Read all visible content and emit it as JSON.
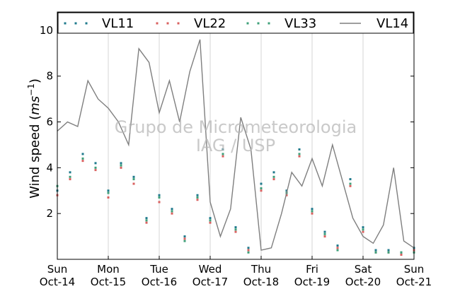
{
  "chart_data": {
    "type": "line",
    "ylabel": "Wind speed (m s⁻¹)",
    "ylabel_main": "Wind speed (",
    "ylabel_unit": "ms",
    "ylabel_exp": "−1",
    "ylabel_close": ")",
    "ylim": [
      0,
      10.8
    ],
    "yticks": [
      2,
      4,
      6,
      8,
      10
    ],
    "xlim": [
      "2012-10-14",
      "2012-10-21"
    ],
    "xticks": [
      {
        "day": "Sun",
        "date": "Oct-14"
      },
      {
        "day": "Mon",
        "date": "Oct-15"
      },
      {
        "day": "Tue",
        "date": "Oct-16"
      },
      {
        "day": "Wed",
        "date": "Oct-17"
      },
      {
        "day": "Thu",
        "date": "Oct-18"
      },
      {
        "day": "Fri",
        "date": "Oct-19"
      },
      {
        "day": "Sat",
        "date": "Oct-20"
      },
      {
        "day": "Sun",
        "date": "Oct-21"
      }
    ],
    "grid": "vertical",
    "legend_position": "top",
    "watermark": [
      "Grupo de Micrometeorologia",
      "IAG / USP"
    ],
    "series": [
      {
        "name": "VL11",
        "style": "dots",
        "color": "#1f7a8c",
        "x": [
          0,
          0.25,
          0.5,
          0.75,
          1,
          1.25,
          1.5,
          1.75,
          2,
          2.25,
          2.5,
          2.75,
          3,
          3.25,
          3.5,
          3.75,
          4,
          4.25,
          4.5,
          4.75,
          5,
          5.25,
          5.5,
          5.75,
          6,
          6.25,
          6.5,
          6.75,
          7
        ],
        "y": [
          3.0,
          3.8,
          4.6,
          4.2,
          3.0,
          4.2,
          3.6,
          1.8,
          2.8,
          2.2,
          1.0,
          2.8,
          1.8,
          4.8,
          1.4,
          0.5,
          3.3,
          3.8,
          3.0,
          4.8,
          2.2,
          1.2,
          0.6,
          3.5,
          1.4,
          0.4,
          0.4,
          0.3,
          0.5
        ]
      },
      {
        "name": "VL22",
        "style": "dots",
        "color": "#d9605f",
        "x": [
          0,
          0.25,
          0.5,
          0.75,
          1,
          1.25,
          1.5,
          1.75,
          2,
          2.25,
          2.5,
          2.75,
          3,
          3.25,
          3.5,
          3.75,
          4,
          4.25,
          4.5,
          4.75,
          5,
          5.25,
          5.5,
          5.75,
          6,
          6.25,
          6.5,
          6.75,
          7
        ],
        "y": [
          2.8,
          3.5,
          4.3,
          3.9,
          2.7,
          4.0,
          3.3,
          1.6,
          2.5,
          2.0,
          0.9,
          2.6,
          1.6,
          4.5,
          1.2,
          0.4,
          3.0,
          3.5,
          2.8,
          4.5,
          2.0,
          1.0,
          0.5,
          3.2,
          1.2,
          0.3,
          0.3,
          0.2,
          0.4
        ]
      },
      {
        "name": "VL33",
        "style": "dots",
        "color": "#3fa07a",
        "x": [
          0,
          0.25,
          0.5,
          0.75,
          1,
          1.25,
          1.5,
          1.75,
          2,
          2.25,
          2.5,
          2.75,
          3,
          3.25,
          3.5,
          3.75,
          4,
          4.25,
          4.5,
          4.75,
          5,
          5.25,
          5.5,
          5.75,
          6,
          6.25,
          6.5,
          6.75,
          7
        ],
        "y": [
          3.2,
          3.6,
          4.4,
          4.0,
          2.9,
          4.1,
          3.5,
          1.7,
          2.7,
          2.1,
          0.8,
          2.7,
          1.7,
          4.6,
          1.3,
          0.3,
          3.1,
          3.6,
          2.9,
          4.6,
          2.1,
          1.1,
          0.4,
          3.3,
          1.3,
          0.3,
          0.3,
          0.3,
          0.3
        ]
      },
      {
        "name": "VL14",
        "style": "line",
        "color": "#7f7f7f",
        "x": [
          0,
          0.2,
          0.4,
          0.6,
          0.8,
          1.0,
          1.2,
          1.4,
          1.6,
          1.8,
          2.0,
          2.2,
          2.4,
          2.6,
          2.8,
          3.0,
          3.2,
          3.4,
          3.6,
          3.8,
          4.0,
          4.2,
          4.4,
          4.6,
          4.8,
          5.0,
          5.2,
          5.4,
          5.6,
          5.8,
          6.0,
          6.2,
          6.4,
          6.6,
          6.8,
          7.0
        ],
        "y": [
          5.6,
          6.0,
          5.8,
          7.8,
          7.0,
          6.6,
          6.0,
          5.0,
          9.2,
          8.6,
          6.4,
          7.8,
          6.0,
          8.2,
          9.6,
          2.5,
          1.0,
          2.2,
          6.2,
          4.8,
          0.4,
          0.5,
          2.0,
          3.8,
          3.2,
          4.4,
          3.2,
          5.0,
          3.4,
          1.8,
          1.0,
          0.7,
          1.5,
          4.0,
          0.8,
          0.5
        ]
      }
    ]
  }
}
